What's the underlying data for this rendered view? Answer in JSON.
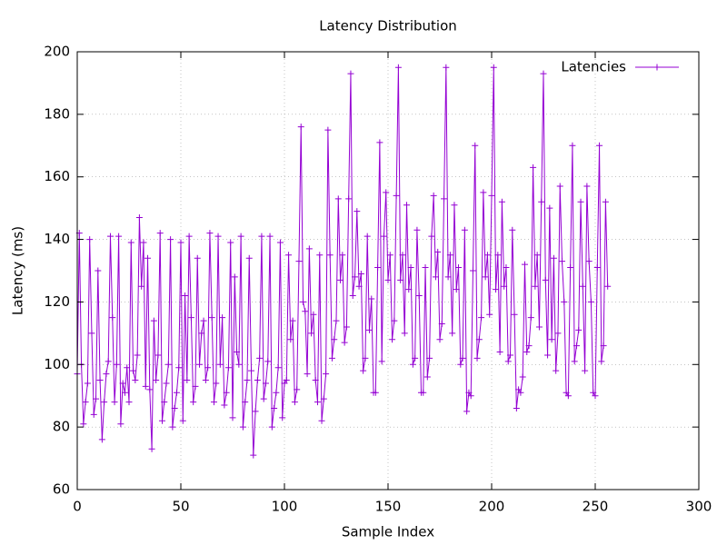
{
  "chart_data": {
    "type": "line",
    "title": "Latency Distribution",
    "x_label": "Sample Index",
    "y_label": "Latency (ms)",
    "legend_position": "top-right",
    "grid": true,
    "marker": "+",
    "xlim": [
      0,
      300
    ],
    "xticks": [
      0,
      50,
      100,
      150,
      200,
      250,
      300
    ],
    "ylim": [
      60,
      200
    ],
    "yticks": [
      60,
      80,
      100,
      120,
      140,
      160,
      180,
      200
    ],
    "x": [
      0,
      1,
      2,
      3,
      4,
      5,
      6,
      7,
      8,
      9,
      10,
      11,
      12,
      13,
      14,
      15,
      16,
      17,
      18,
      19,
      20,
      21,
      22,
      23,
      24,
      25,
      26,
      27,
      28,
      29,
      30,
      31,
      32,
      33,
      34,
      35,
      36,
      37,
      38,
      39,
      40,
      41,
      42,
      43,
      44,
      45,
      46,
      47,
      48,
      49,
      50,
      51,
      52,
      53,
      54,
      55,
      56,
      57,
      58,
      59,
      60,
      61,
      62,
      63,
      64,
      65,
      66,
      67,
      68,
      69,
      70,
      71,
      72,
      73,
      74,
      75,
      76,
      77,
      78,
      79,
      80,
      81,
      82,
      83,
      84,
      85,
      86,
      87,
      88,
      89,
      90,
      91,
      92,
      93,
      94,
      95,
      96,
      97,
      98,
      99,
      100,
      101,
      102,
      103,
      104,
      105,
      106,
      107,
      108,
      109,
      110,
      111,
      112,
      113,
      114,
      115,
      116,
      117,
      118,
      119,
      120,
      121,
      122,
      123,
      124,
      125,
      126,
      127,
      128,
      129,
      130,
      131,
      132,
      133,
      134,
      135,
      136,
      137,
      138,
      139,
      140,
      141,
      142,
      143,
      144,
      145,
      146,
      147,
      148,
      149,
      150,
      151,
      152,
      153,
      154,
      155,
      156,
      157,
      158,
      159,
      160,
      161,
      162,
      163,
      164,
      165,
      166,
      167,
      168,
      169,
      170,
      171,
      172,
      173,
      174,
      175,
      176,
      177,
      178,
      179,
      180,
      181,
      182,
      183,
      184,
      185,
      186,
      187,
      188,
      189,
      190,
      191,
      192,
      193,
      194,
      195,
      196,
      197,
      198,
      199,
      200,
      201,
      202,
      203,
      204,
      205,
      206,
      207,
      208,
      209,
      210,
      211,
      212,
      213,
      214,
      215,
      216,
      217,
      218,
      219,
      220,
      221,
      222,
      223,
      224,
      225,
      226,
      227,
      228,
      229,
      230,
      231,
      232,
      233,
      234,
      235,
      236,
      237,
      238,
      239,
      240,
      241,
      242,
      243,
      244,
      245,
      246,
      247,
      248,
      249,
      250,
      251,
      252,
      253,
      254,
      255,
      256
    ],
    "series": [
      {
        "name": "Latencies",
        "color": "#9400d3",
        "values": [
          97,
          142,
          100,
          81,
          88,
          94,
          140,
          110,
          84,
          89,
          130,
          95,
          76,
          88,
          97,
          101,
          141,
          115,
          88,
          100,
          141,
          81,
          94,
          91,
          99,
          88,
          139,
          98,
          95,
          103,
          147,
          125,
          139,
          93,
          134,
          92,
          73,
          114,
          95,
          103,
          142,
          82,
          88,
          94,
          100,
          140,
          80,
          86,
          91,
          99,
          139,
          82,
          122,
          95,
          141,
          115,
          88,
          93,
          134,
          100,
          110,
          114,
          95,
          99,
          142,
          115,
          88,
          94,
          141,
          100,
          115,
          87,
          91,
          99,
          139,
          83,
          128,
          104,
          100,
          141,
          80,
          88,
          95,
          134,
          98,
          71,
          85,
          95,
          102,
          141,
          89,
          94,
          101,
          141,
          80,
          86,
          91,
          99,
          139,
          83,
          94,
          95,
          135,
          108,
          114,
          88,
          92,
          133,
          176,
          120,
          117,
          97,
          137,
          110,
          116,
          95,
          88,
          135,
          82,
          89,
          97,
          175,
          135,
          102,
          108,
          114,
          153,
          127,
          135,
          107,
          112,
          153,
          193,
          122,
          128,
          149,
          125,
          129,
          98,
          102,
          141,
          111,
          121,
          91,
          91,
          131,
          171,
          101,
          141,
          155,
          127,
          135,
          108,
          114,
          154,
          195,
          127,
          135,
          110,
          151,
          124,
          131,
          100,
          102,
          143,
          122,
          91,
          91,
          131,
          96,
          102,
          141,
          154,
          128,
          136,
          108,
          113,
          153,
          195,
          128,
          135,
          110,
          151,
          124,
          131,
          100,
          102,
          143,
          85,
          91,
          90,
          130,
          170,
          102,
          108,
          115,
          155,
          128,
          135,
          116,
          154,
          195,
          124,
          135,
          104,
          152,
          125,
          131,
          101,
          103,
          143,
          116,
          86,
          92,
          91,
          96,
          132,
          104,
          106,
          115,
          163,
          125,
          135,
          112,
          152,
          193,
          127,
          103,
          150,
          108,
          134,
          98,
          110,
          157,
          133,
          120,
          91,
          90,
          131,
          170,
          101,
          106,
          111,
          152,
          125,
          98,
          157,
          133,
          120,
          91,
          90,
          131,
          170,
          101,
          106,
          152,
          125
        ]
      }
    ]
  }
}
